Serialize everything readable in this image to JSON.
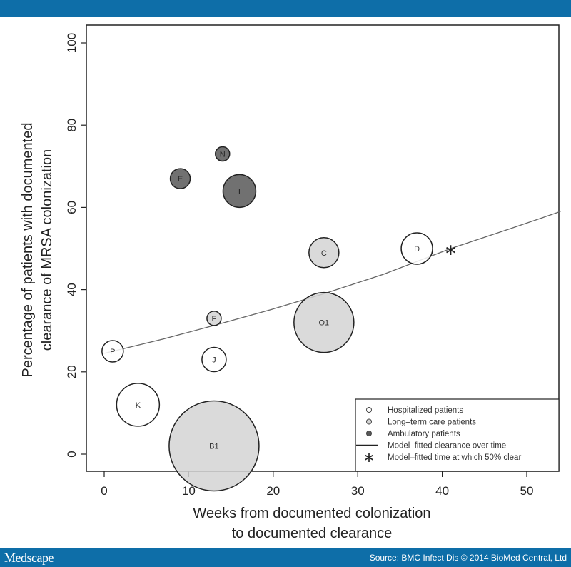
{
  "header": {},
  "footer": {
    "logo": "Medscape",
    "source": "Source: BMC Infect Dis © 2014 BioMed Central, Ltd"
  },
  "chart_data": {
    "type": "scatter",
    "subtype": "bubble",
    "xlabel": [
      "Weeks from documented colonization",
      "to documented clearance"
    ],
    "ylabel": [
      "Percentage of patients with documented",
      "clearance of MRSA colonization"
    ],
    "xlim": [
      -2,
      54
    ],
    "ylim": [
      -4,
      104
    ],
    "xticks": [
      "0",
      "10",
      "20",
      "30",
      "40",
      "50"
    ],
    "yticks": [
      "0",
      "20",
      "40",
      "60",
      "80",
      "100"
    ],
    "grid": false,
    "legend_position": "bottom-right",
    "colors": {
      "hospitalized": "#ffffff",
      "long_term": "#d4d4d4",
      "ambulatory": "#585858",
      "line": "#666666",
      "brand": "#0e6ea8"
    },
    "legend": [
      {
        "key": "hospitalized",
        "label": "Hospitalized patients"
      },
      {
        "key": "long_term",
        "label": "Long–term care patients"
      },
      {
        "key": "ambulatory",
        "label": "Ambulatory patients"
      },
      {
        "key": "line",
        "label": "Model–fitted clearance over time"
      },
      {
        "key": "star",
        "label": "Model–fitted time at which 50% clear"
      }
    ],
    "points": [
      {
        "label": "P",
        "x": 1,
        "y": 25,
        "group": "hospitalized",
        "relative_size": 15
      },
      {
        "label": "K",
        "x": 4,
        "y": 12,
        "group": "hospitalized",
        "relative_size": 30
      },
      {
        "label": "J",
        "x": 13,
        "y": 23,
        "group": "hospitalized",
        "relative_size": 17
      },
      {
        "label": "D",
        "x": 37,
        "y": 50,
        "group": "hospitalized",
        "relative_size": 22
      },
      {
        "label": "B1",
        "x": 13,
        "y": 2,
        "group": "long_term",
        "relative_size": 63
      },
      {
        "label": "F",
        "x": 13,
        "y": 33,
        "group": "long_term",
        "relative_size": 10
      },
      {
        "label": "C",
        "x": 26,
        "y": 49,
        "group": "long_term",
        "relative_size": 21
      },
      {
        "label": "O1",
        "x": 26,
        "y": 32,
        "group": "long_term",
        "relative_size": 42
      },
      {
        "label": "E",
        "x": 9,
        "y": 67,
        "group": "ambulatory",
        "relative_size": 14
      },
      {
        "label": "N",
        "x": 14,
        "y": 73,
        "group": "ambulatory",
        "relative_size": 10
      },
      {
        "label": "I",
        "x": 16,
        "y": 64,
        "group": "ambulatory",
        "relative_size": 23
      }
    ],
    "fitted_line": {
      "x": [
        0,
        7,
        13,
        20,
        26,
        33,
        41,
        48,
        54
      ],
      "y": [
        24.5,
        28,
        31.3,
        35.3,
        39,
        43.7,
        50,
        54.8,
        59
      ]
    },
    "fifty_percent_point": {
      "x": 41,
      "y": 50
    }
  }
}
